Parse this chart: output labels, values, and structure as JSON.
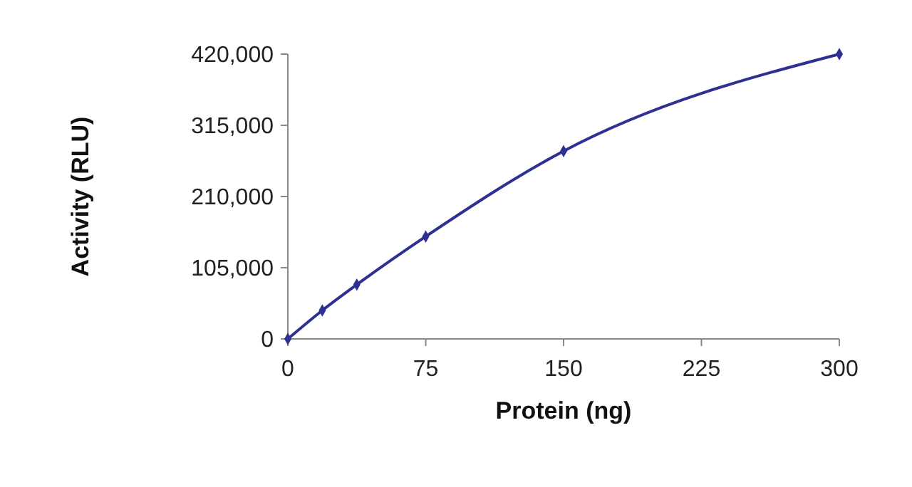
{
  "chart_data": {
    "type": "line",
    "xlabel": "Protein (ng)",
    "ylabel": "Activity (RLU)",
    "x": [
      0,
      18.75,
      37.5,
      75,
      150,
      300
    ],
    "series": [
      {
        "color": "#2e3192",
        "values": [
          0,
          42000,
          80000,
          151000,
          277000,
          420000
        ]
      }
    ],
    "xlim": [
      0,
      300
    ],
    "xticks": [
      0,
      75,
      150,
      225,
      300
    ],
    "ylim": [
      0,
      420000
    ],
    "yticks": [
      {
        "value": 0,
        "label": "0"
      },
      {
        "value": 105000,
        "label": "105,000"
      },
      {
        "value": 210000,
        "label": "210,000"
      },
      {
        "value": 315000,
        "label": "315,000"
      },
      {
        "value": 420000,
        "label": "420,000"
      }
    ],
    "grid": false,
    "marker": "diamond",
    "line_style": "solid"
  }
}
